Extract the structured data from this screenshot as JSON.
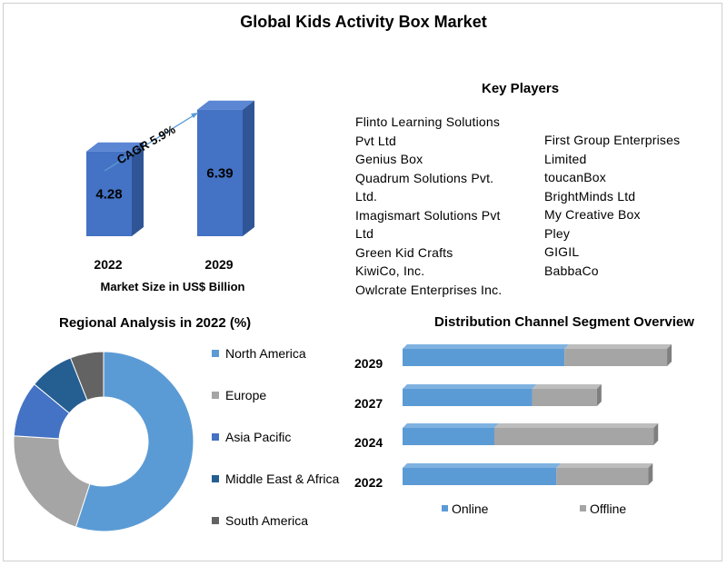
{
  "title": "Global Kids Activity Box Market",
  "colors": {
    "bar_front": "#4472c4",
    "bar_side": "#2f5597",
    "bar_top": "#5b86d4",
    "online": "#5b9bd5",
    "offline": "#a5a5a5",
    "arrow": "#5b9bd5",
    "north_america": "#5b9bd5",
    "europe": "#a5a5a5",
    "asia_pacific": "#4472c4",
    "middle_east_africa": "#255e91",
    "south_america": "#636363"
  },
  "market_size": {
    "cagr_label": "CAGR 5.9%",
    "xlabel": "Market Size in US$ Billion"
  },
  "key_players": {
    "heading": "Key Players",
    "col1": [
      "Flinto Learning Solutions",
      "Pvt Ltd",
      "Genius Box",
      "Quadrum Solutions Pvt.",
      "Ltd.",
      "Imagismart Solutions Pvt",
      "Ltd",
      "Green Kid Crafts",
      "KiwiCo, Inc.",
      "Owlcrate Enterprises Inc."
    ],
    "col2": [
      "First Group Enterprises",
      "Limited",
      "toucanBox",
      "BrightMinds Ltd",
      "My Creative Box",
      "Pley",
      "GIGIL",
      "BabbaCo"
    ]
  },
  "regional": {
    "title": "Regional Analysis in 2022 (%)",
    "legend": [
      "North America",
      "Europe",
      "Asia Pacific",
      "Middle East & Africa",
      "South America"
    ]
  },
  "distribution": {
    "title": "Distribution Channel Segment Overview",
    "legend": [
      "Online",
      "Offline"
    ]
  },
  "chart_data": [
    {
      "type": "bar",
      "title": "",
      "categories": [
        "2022",
        "2029"
      ],
      "values": [
        4.28,
        6.39
      ],
      "xlabel": "Market Size in US$ Billion",
      "ylabel": "",
      "annotations": [
        "CAGR 5.9%"
      ]
    },
    {
      "type": "pie",
      "title": "Regional Analysis in 2022 (%)",
      "donut": true,
      "labels": [
        "North America",
        "Europe",
        "Asia Pacific",
        "Middle East & Africa",
        "South America"
      ],
      "values": [
        55,
        21,
        10,
        8,
        6
      ]
    },
    {
      "type": "bar",
      "orientation": "horizontal",
      "stacked": true,
      "title": "Distribution Channel Segment Overview",
      "categories": [
        "2029",
        "2027",
        "2024",
        "2022"
      ],
      "series": [
        {
          "name": "Online",
          "values": [
            60,
            48,
            34,
            57
          ]
        },
        {
          "name": "Offline",
          "values": [
            38,
            24,
            59,
            34
          ]
        }
      ],
      "legend_position": "bottom"
    }
  ]
}
